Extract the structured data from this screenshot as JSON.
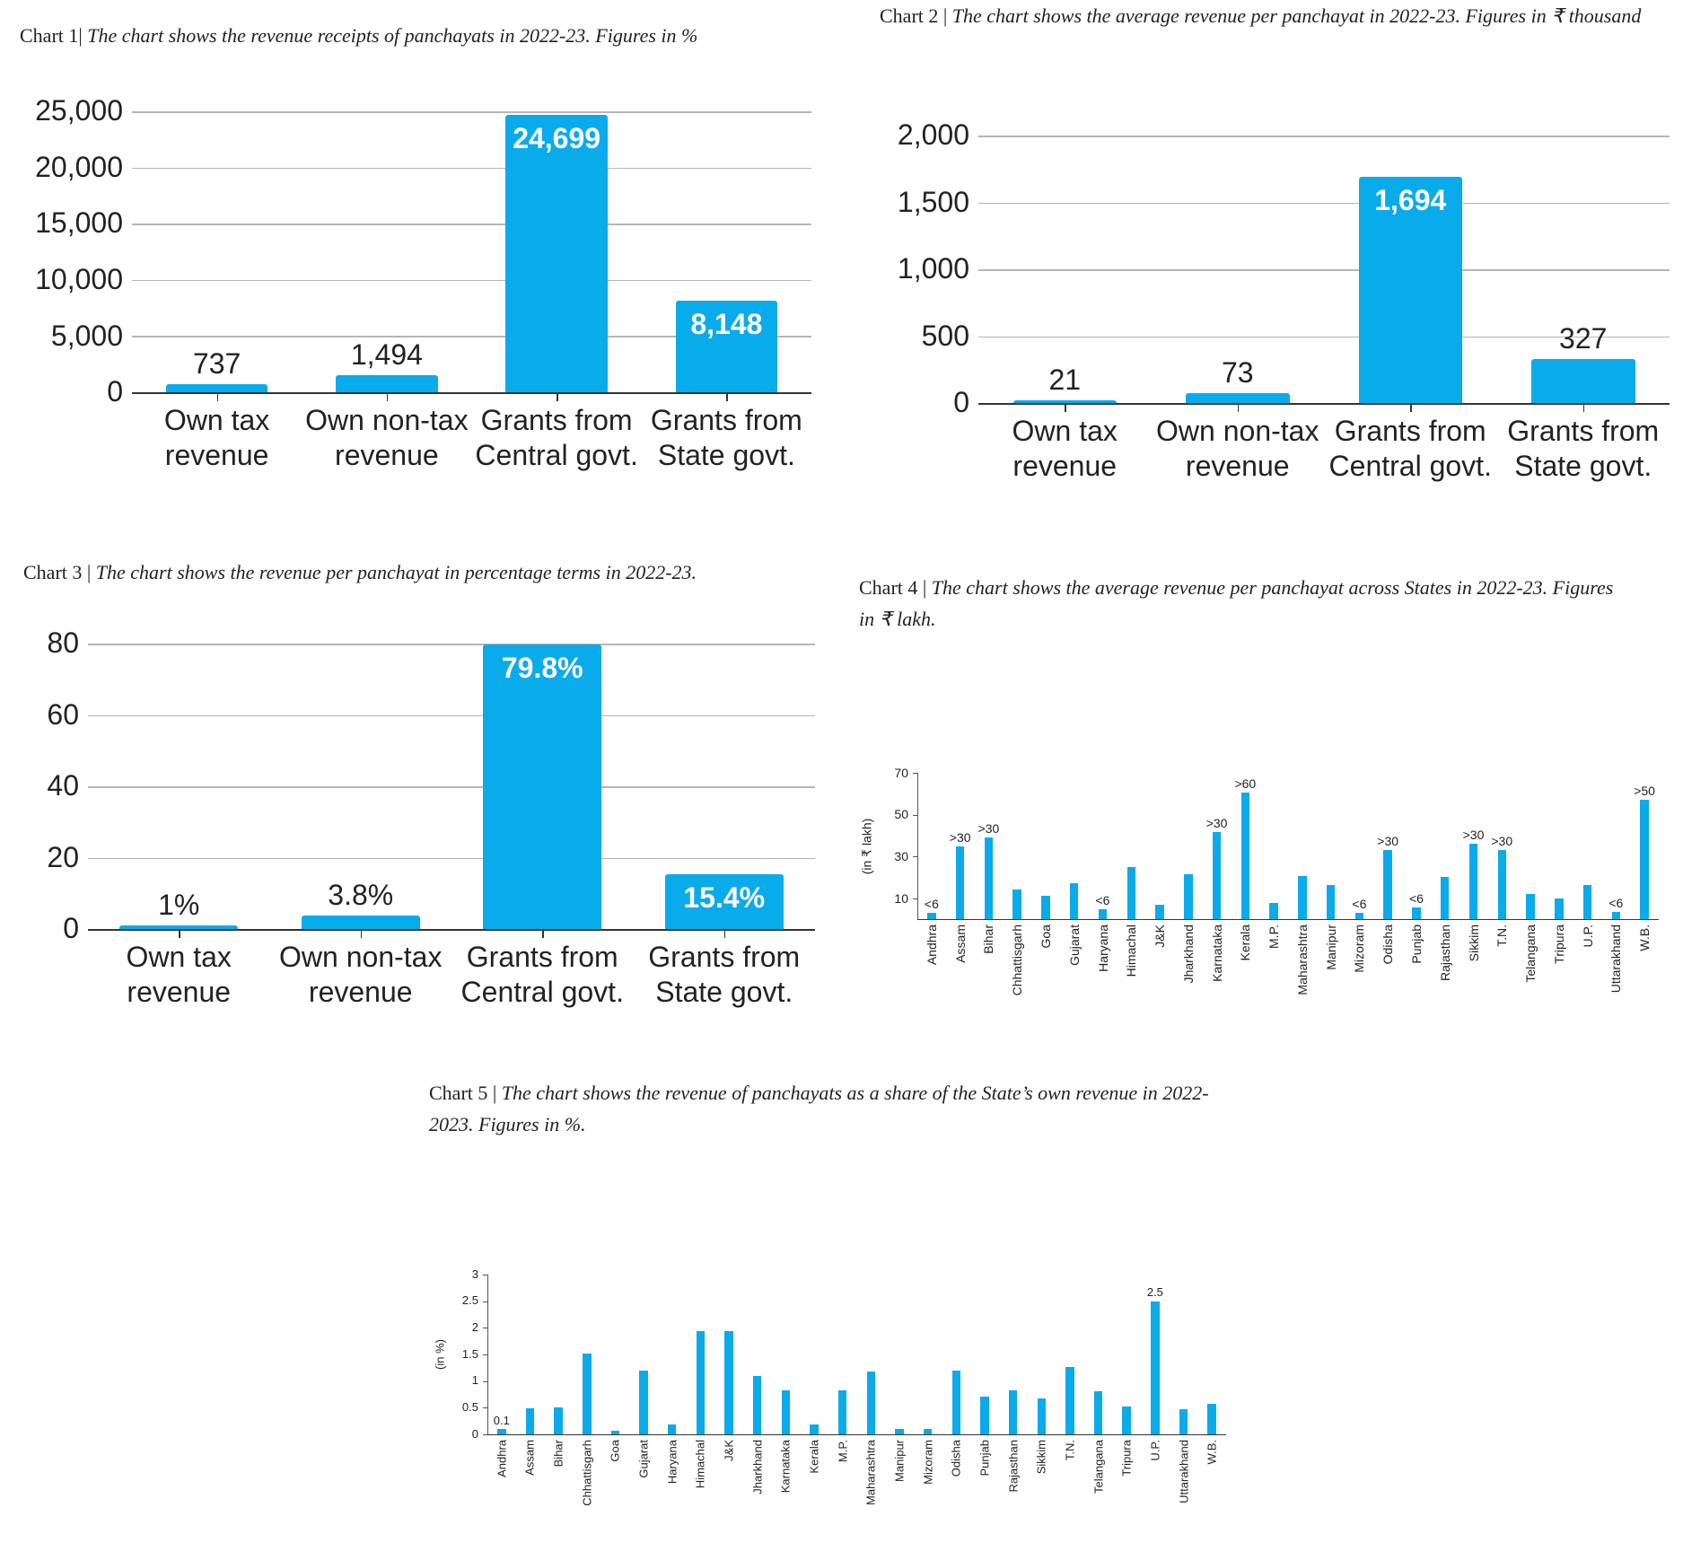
{
  "chart_data": [
    {
      "type": "bar",
      "label": "Chart 1|",
      "title": "The chart shows the revenue receipts of panchayats in 2022-23. Figures in %",
      "categories": [
        "Own tax revenue",
        "Own non-tax revenue",
        "Grants from Central govt.",
        "Grants from State govt."
      ],
      "values": [
        737,
        1494,
        24699,
        8148
      ],
      "value_labels": [
        "737",
        "1,494",
        "24,699",
        "8,148"
      ],
      "color": "#0aabea",
      "ylim": [
        0,
        25000
      ],
      "yticks": [
        0,
        {
          "value": 5000,
          "label": "5,000"
        },
        {
          "value": 10000,
          "label": "10,000"
        },
        {
          "value": 15000,
          "label": "15,000"
        },
        {
          "value": 20000,
          "label": "20,000"
        },
        {
          "value": 25000,
          "label": "25,000"
        }
      ],
      "grid": true
    },
    {
      "type": "bar",
      "label": "Chart 2 |",
      "title": "The chart shows the average revenue per panchayat in 2022-23. Figures in ₹ thousand",
      "categories": [
        "Own tax revenue",
        "Own non-tax revenue",
        "Grants from Central govt.",
        "Grants from State govt."
      ],
      "values": [
        21,
        73,
        1694,
        327
      ],
      "value_labels": [
        "21",
        "73",
        "1,694",
        "327"
      ],
      "color": "#0aabea",
      "ylim": [
        0,
        2000
      ],
      "yticks": [
        0,
        500,
        {
          "value": 1000,
          "label": "1,000"
        },
        {
          "value": 1500,
          "label": "1,500"
        },
        {
          "value": 2000,
          "label": "2,000"
        }
      ],
      "grid": true
    },
    {
      "type": "bar",
      "label": "Chart 3 |",
      "title": "The chart shows the revenue per panchayat in percentage terms in 2022-23.",
      "categories": [
        "Own tax revenue",
        "Own non-tax revenue",
        "Grants from Central govt.",
        "Grants from State govt."
      ],
      "values": [
        1,
        3.8,
        79.8,
        15.4
      ],
      "value_labels": [
        "1%",
        "3.8%",
        "79.8%",
        "15.4%"
      ],
      "color": "#0aabea",
      "ylim": [
        0,
        80
      ],
      "yticks": [
        0,
        20,
        40,
        60,
        80
      ],
      "grid": true
    },
    {
      "type": "bar",
      "label": "Chart 4 |",
      "title": "The chart shows the average revenue per panchayat across States in 2022-23. Figures in ₹ lakh.",
      "ylabel": "(in ₹ lakh)",
      "categories": [
        "Andhra",
        "Assam",
        "Bihar",
        "Chhattisgarh",
        "Goa",
        "Gujarat",
        "Haryana",
        "Himachal",
        "J&K",
        "Jharkhand",
        "Karnataka",
        "Kerala",
        "M.P.",
        "Maharashtra",
        "Manipur",
        "Mizoram",
        "Odisha",
        "Punjab",
        "Rajasthan",
        "Sikkim",
        "T.N.",
        "Telangana",
        "Tripura",
        "U.P.",
        "Uttarakhand",
        "W.B."
      ],
      "values": [
        3,
        35,
        39,
        14,
        11,
        17,
        4.6,
        25,
        6.7,
        21.5,
        41.5,
        60.5,
        7.7,
        20.5,
        16.4,
        3,
        33,
        5.5,
        20,
        36,
        33,
        12,
        10,
        16.4,
        3.6,
        57
      ],
      "value_labels": [
        "<6",
        ">30",
        ">30",
        null,
        null,
        null,
        "<6",
        null,
        null,
        null,
        ">30",
        ">60",
        null,
        null,
        null,
        "<6",
        ">30",
        "<6",
        null,
        ">30",
        ">30",
        null,
        null,
        null,
        "<6",
        ">50"
      ],
      "color": "#0aabea",
      "ylim": [
        0,
        70
      ],
      "yticks": [
        10,
        30,
        50,
        70
      ],
      "grid": false
    },
    {
      "type": "bar",
      "label": "Chart 5 |",
      "title": "The chart shows the revenue of panchayats as a share of the State’s own revenue in 2022-2023. Figures in %.",
      "ylabel": "(in %)",
      "categories": [
        "Andhra",
        "Assam",
        "Bihar",
        "Chhattisgarh",
        "Goa",
        "Gujarat",
        "Haryana",
        "Himachal",
        "J&K",
        "Jharkhand",
        "Karnataka",
        "Kerala",
        "M.P.",
        "Maharashtra",
        "Manipur",
        "Mizoram",
        "Odisha",
        "Punjab",
        "Rajasthan",
        "Sikkim",
        "T.N.",
        "Telangana",
        "Tripura",
        "U.P.",
        "Uttarakhand",
        "W.B."
      ],
      "values": [
        0.1,
        0.49,
        0.5,
        1.52,
        0.06,
        1.2,
        0.18,
        1.93,
        1.93,
        1.1,
        0.83,
        0.18,
        0.83,
        1.18,
        0.1,
        0.1,
        1.2,
        0.71,
        0.83,
        0.67,
        1.26,
        0.81,
        0.53,
        2.5,
        0.47,
        0.57
      ],
      "value_labels": [
        "0.1",
        null,
        null,
        null,
        null,
        null,
        null,
        null,
        null,
        null,
        null,
        null,
        null,
        null,
        null,
        null,
        null,
        null,
        null,
        null,
        null,
        null,
        null,
        "2.5",
        null,
        null
      ],
      "color": "#0aabea",
      "ylim": [
        0,
        3
      ],
      "yticks": [
        0,
        0.5,
        1,
        1.5,
        2,
        2.5,
        3
      ],
      "grid": false
    }
  ]
}
